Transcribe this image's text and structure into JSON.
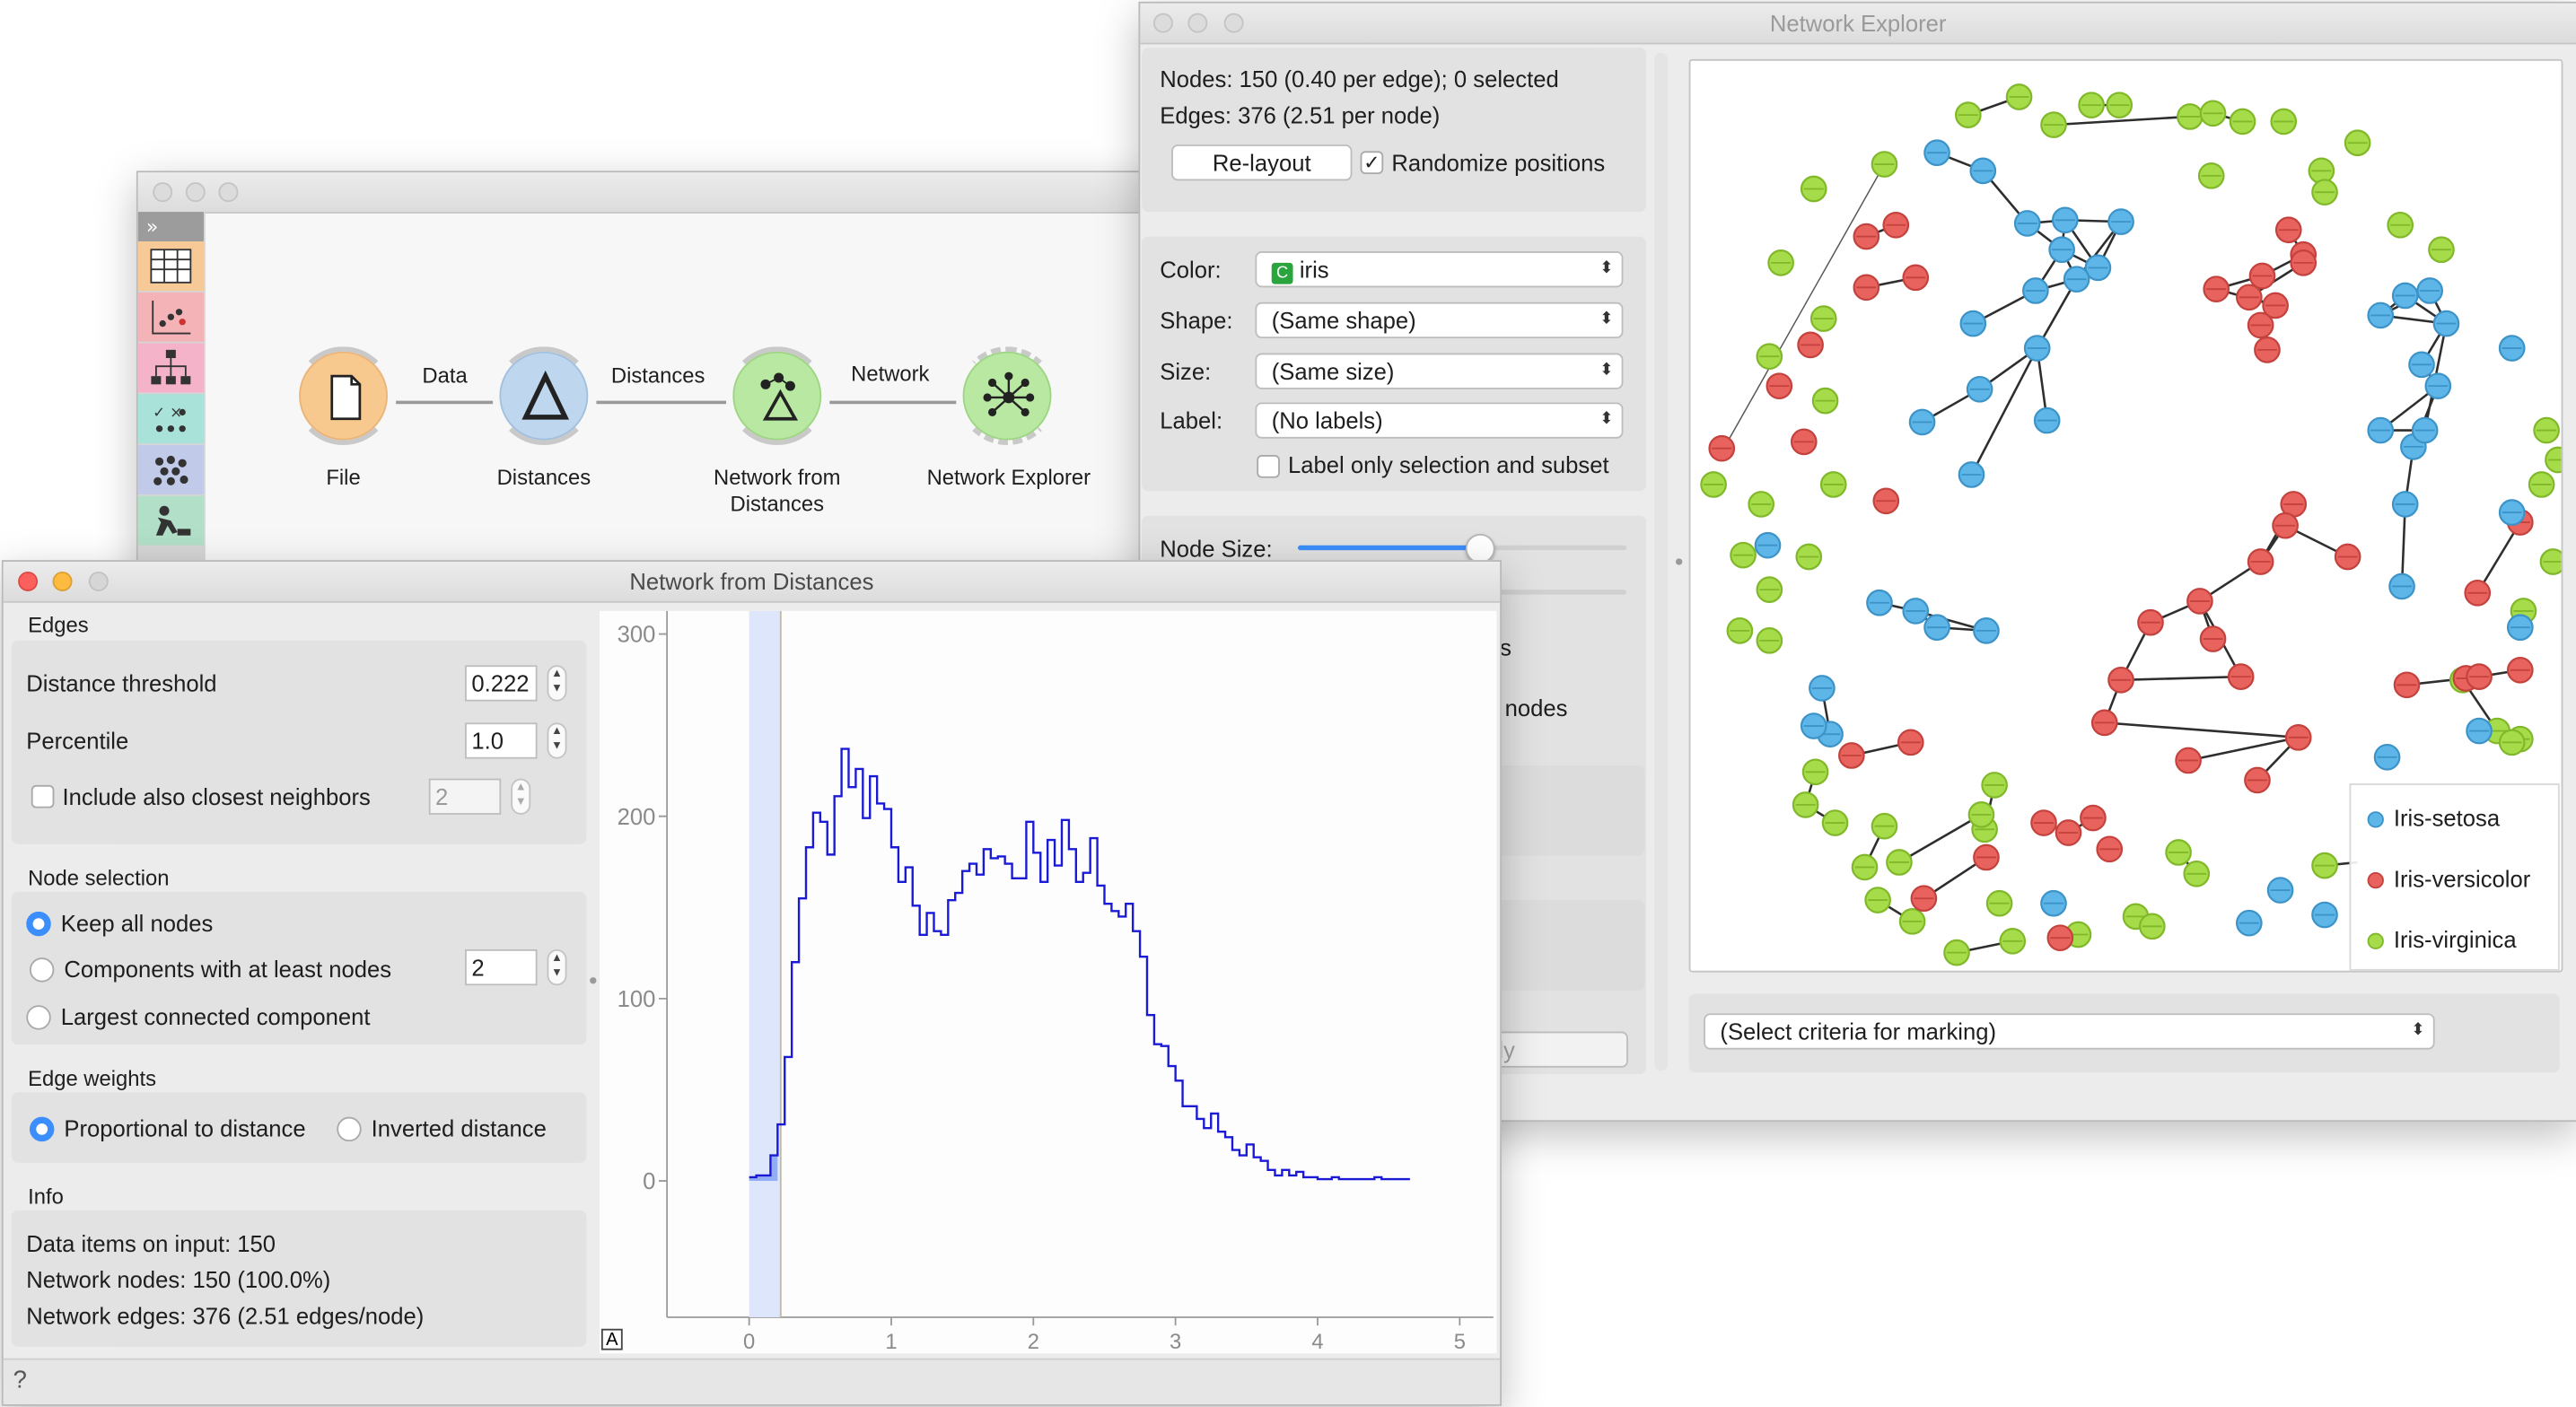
{
  "canvas_window": {
    "connections": [
      {
        "label": "Data"
      },
      {
        "label": "Distances"
      },
      {
        "label": "Network"
      }
    ],
    "widgets": [
      {
        "label": "File",
        "icon": "file-icon",
        "color": "#f7c98e"
      },
      {
        "label": "Distances",
        "icon": "delta-icon",
        "color": "#bed6ee"
      },
      {
        "label": "Network from\nDistances",
        "icon": "network-from-distances-icon",
        "color": "#b9e8a2"
      },
      {
        "label": "Network Explorer",
        "icon": "network-explorer-icon",
        "color": "#b9e8a2"
      }
    ],
    "toolbox_icons": [
      "expand-icon",
      "table-icon",
      "scatter-icon",
      "tree-icon",
      "matrix-icon",
      "cluster-icon",
      "build-icon"
    ]
  },
  "nfd": {
    "title": "Network from Distances",
    "edges_label": "Edges",
    "distance_threshold_label": "Distance threshold",
    "distance_threshold_value": "0.222",
    "percentile_label": "Percentile",
    "percentile_value": "1.0",
    "include_closest_label": "Include also closest neighbors",
    "include_closest_value": "2",
    "include_closest_checked": false,
    "node_selection_label": "Node selection",
    "keep_all_label": "Keep all nodes",
    "components_label": "Components with at least nodes",
    "components_value": "2",
    "largest_label": "Largest connected component",
    "edge_weights_label": "Edge weights",
    "proportional_label": "Proportional to distance",
    "inverted_label": "Inverted distance",
    "info_label": "Info",
    "info_items": "Data items on input: 150",
    "info_nodes": "Network nodes: 150 (100.0%)",
    "info_edges": "Network edges: 376 (2.51 edges/node)",
    "help_icon": "help-icon",
    "autoscale_label": "A"
  },
  "chart_data": {
    "type": "line",
    "step": true,
    "xlim": [
      0,
      5
    ],
    "ylim": [
      0,
      300
    ],
    "x_ticks": [
      0,
      1,
      2,
      3,
      4,
      5
    ],
    "y_ticks": [
      0,
      100,
      200,
      300
    ],
    "threshold": 0.222,
    "selected_range": [
      0,
      0.222
    ],
    "bin_width": 0.05,
    "x_start": 0,
    "values": [
      2,
      3,
      3,
      14,
      31,
      68,
      120,
      155,
      183,
      202,
      197,
      179,
      211,
      237,
      216,
      226,
      199,
      222,
      207,
      204,
      183,
      164,
      172,
      151,
      135,
      147,
      137,
      135,
      154,
      158,
      170,
      174,
      168,
      182,
      177,
      178,
      174,
      166,
      166,
      197,
      180,
      164,
      187,
      173,
      198,
      182,
      164,
      169,
      188,
      162,
      152,
      148,
      145,
      152,
      137,
      123,
      91,
      75,
      74,
      63,
      55,
      41,
      41,
      34,
      29,
      37,
      27,
      24,
      17,
      14,
      20,
      13,
      11,
      6,
      3,
      6,
      3,
      5,
      2,
      2,
      1,
      1,
      2,
      1,
      1,
      1,
      1,
      1,
      2,
      1,
      1,
      1,
      1
    ]
  },
  "explorer": {
    "title": "Network Explorer",
    "nodes_info": "Nodes: 150 (0.40 per edge); 0 selected",
    "edges_info": "Edges: 376 (2.51 per node)",
    "relayout_label": "Re-layout",
    "randomize_label": "Randomize positions",
    "randomize_checked": true,
    "color_label": "Color:",
    "color_value": "iris",
    "color_badge": "C",
    "shape_label": "Shape:",
    "shape_value": "(Same shape)",
    "size_label": "Size:",
    "size_value": "(Same size)",
    "label_label": "Label:",
    "label_value": "(No labels)",
    "label_only_label": "Label only selection and subset",
    "node_size_label": "Node Size:",
    "node_size_fraction": 0.55,
    "partial_s": "s",
    "partial_nodes": "l nodes",
    "partial_ly": "ly",
    "marking_value": "(Select criteria for marking)",
    "legend": [
      {
        "label": "Iris-setosa",
        "color": "#5eb5e8"
      },
      {
        "label": "Iris-versicolor",
        "color": "#e8635e"
      },
      {
        "label": "Iris-virginica",
        "color": "#a6dc4a"
      }
    ]
  }
}
